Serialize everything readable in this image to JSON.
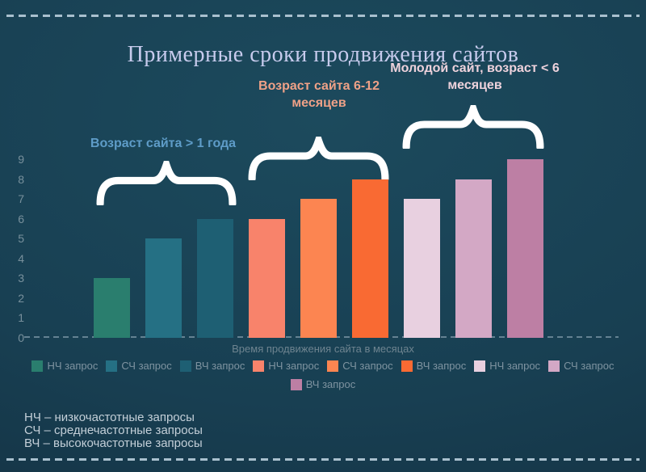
{
  "title": "Примерные сроки продвижения сайтов",
  "chart_data": {
    "type": "bar",
    "title": "Примерные сроки продвижения сайтов",
    "xlabel": "Время продвижения сайта в месяцах",
    "ylabel": "",
    "ylim": [
      0,
      9
    ],
    "yticks": [
      0,
      1,
      2,
      3,
      4,
      5,
      6,
      7,
      8,
      9
    ],
    "grid": "dashed baseline only",
    "legend_position": "bottom",
    "groups": [
      {
        "label": "Возраст сайта > 1 года",
        "label_color": "#5e9cc8",
        "bars": [
          {
            "name": "НЧ запрос",
            "value": 3,
            "color": "#2a7e6e"
          },
          {
            "name": "СЧ запрос",
            "value": 5,
            "color": "#257084"
          },
          {
            "name": "ВЧ запрос",
            "value": 6,
            "color": "#1e5f73"
          }
        ]
      },
      {
        "label": "Возраст сайта 6-12 месяцев",
        "label_color": "#efa187",
        "bars": [
          {
            "name": "НЧ запрос",
            "value": 6,
            "color": "#f8836b"
          },
          {
            "name": "СЧ запрос",
            "value": 7,
            "color": "#fc8551"
          },
          {
            "name": "ВЧ запрос",
            "value": 8,
            "color": "#f96a33"
          }
        ]
      },
      {
        "label": "Молодой сайт, возраст < 6 месяцев",
        "label_color": "#eed2dc",
        "bars": [
          {
            "name": "НЧ запрос",
            "value": 7,
            "color": "#e8d0e0"
          },
          {
            "name": "СЧ запрос",
            "value": 8,
            "color": "#d3a8c5"
          },
          {
            "name": "ВЧ запрос",
            "value": 9,
            "color": "#bd7fa4"
          }
        ]
      }
    ],
    "legend_rows": [
      [
        {
          "label": "НЧ запрос",
          "color": "#2a7e6e"
        },
        {
          "label": "СЧ запрос",
          "color": "#257084"
        },
        {
          "label": "ВЧ запрос",
          "color": "#1e5f73"
        },
        {
          "label": "НЧ запрос",
          "color": "#f8836b"
        },
        {
          "label": "СЧ запрос",
          "color": "#fc8551"
        },
        {
          "label": "ВЧ запрос",
          "color": "#f96a33"
        },
        {
          "label": "НЧ запрос",
          "color": "#e8d0e0"
        },
        {
          "label": "СЧ запрос",
          "color": "#d3a8c5"
        }
      ],
      [
        {
          "label": "ВЧ запрос",
          "color": "#bd7fa4"
        }
      ]
    ],
    "footnotes": [
      "НЧ – низкочастотные запросы",
      "СЧ – среднечастотные запросы",
      "ВЧ – высокочастотные запросы"
    ]
  },
  "style_colors": {
    "background": "#183f52",
    "dashed_border": "#a9c0ce",
    "title_text": "#c7cbed",
    "axis_text": "#78909c",
    "legend_text": "#7e93a0",
    "footnote_text": "#c3cfd8",
    "brace": "#ffffff"
  }
}
